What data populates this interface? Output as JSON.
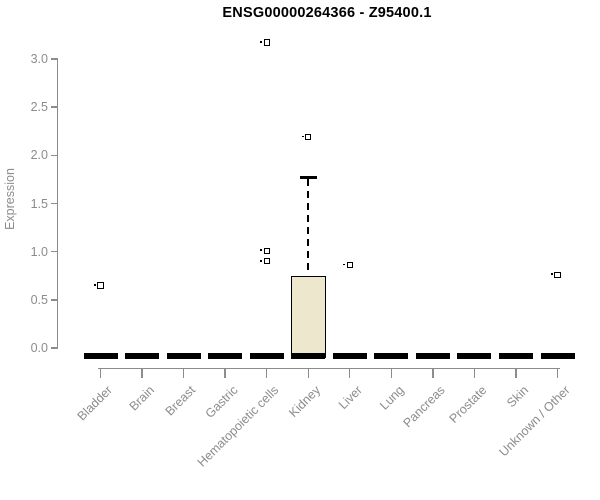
{
  "chart_data": {
    "type": "box",
    "title": "ENSG00000264366 - Z95400.1",
    "ylabel": "Expression",
    "xlabel": "",
    "ylim": [
      -0.2,
      3.3
    ],
    "yticks": [
      0.0,
      0.5,
      1.0,
      1.5,
      2.0,
      2.5,
      3.0
    ],
    "grid": false,
    "legend": null,
    "categories": [
      "Bladder",
      "Brain",
      "Breast",
      "Gastric",
      "Hematopoietic cells",
      "Kidney",
      "Liver",
      "Lung",
      "Pancreas",
      "Prostate",
      "Skin",
      "Unknown / Other"
    ],
    "boxes": [
      {
        "category": "Bladder",
        "median": 0,
        "q1": 0,
        "q3": 0,
        "whisker_low": 0,
        "whisker_high": 0,
        "outliers": [
          0.65
        ]
      },
      {
        "category": "Brain",
        "median": 0,
        "q1": 0,
        "q3": 0,
        "whisker_low": 0,
        "whisker_high": 0,
        "outliers": []
      },
      {
        "category": "Breast",
        "median": 0,
        "q1": 0,
        "q3": 0,
        "whisker_low": 0,
        "whisker_high": 0,
        "outliers": []
      },
      {
        "category": "Gastric",
        "median": 0,
        "q1": 0,
        "q3": 0,
        "whisker_low": 0,
        "whisker_high": 0,
        "outliers": []
      },
      {
        "category": "Hematopoietic cells",
        "median": 0,
        "q1": 0,
        "q3": 0,
        "whisker_low": 0,
        "whisker_high": 0,
        "outliers": [
          3.17,
          1.01,
          0.9
        ]
      },
      {
        "category": "Kidney",
        "median": 0,
        "q1": 0,
        "q3": 0.75,
        "whisker_low": 0,
        "whisker_high": 1.77,
        "outliers": [
          2.19
        ]
      },
      {
        "category": "Liver",
        "median": 0,
        "q1": 0,
        "q3": 0,
        "whisker_low": 0,
        "whisker_high": 0,
        "outliers": [
          0.86
        ]
      },
      {
        "category": "Lung",
        "median": 0,
        "q1": 0,
        "q3": 0,
        "whisker_low": 0,
        "whisker_high": 0,
        "outliers": []
      },
      {
        "category": "Pancreas",
        "median": 0,
        "q1": 0,
        "q3": 0,
        "whisker_low": 0,
        "whisker_high": 0,
        "outliers": []
      },
      {
        "category": "Prostate",
        "median": 0,
        "q1": 0,
        "q3": 0,
        "whisker_low": 0,
        "whisker_high": 0,
        "outliers": []
      },
      {
        "category": "Skin",
        "median": 0,
        "q1": 0,
        "q3": 0,
        "whisker_low": 0,
        "whisker_high": 0,
        "outliers": []
      },
      {
        "category": "Unknown / Other",
        "median": 0,
        "q1": 0,
        "q3": 0,
        "whisker_low": 0,
        "whisker_high": 0,
        "outliers": [
          0.76
        ]
      }
    ],
    "colors": {
      "box_fill": "#ece7cd",
      "box_border": "#000000",
      "median": "#000000",
      "outlier": "#000000",
      "axis": "#8c8c8c",
      "tick_text": "#8c8c8c",
      "title_text": "#000000"
    }
  }
}
